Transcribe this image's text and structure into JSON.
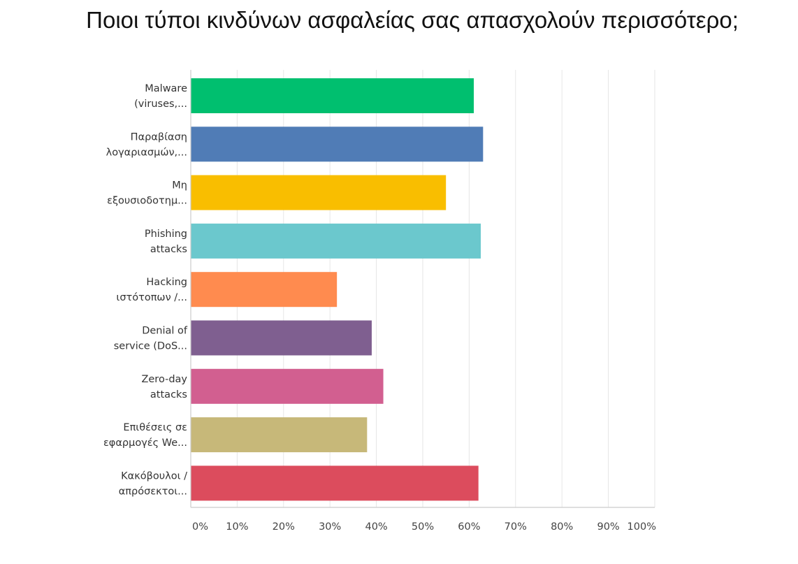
{
  "chart_data": {
    "type": "bar",
    "orientation": "horizontal",
    "title": "Ποιοι τύποι κινδύνων ασφαλείας σας απασχολούν περισσότερο;",
    "categories": [
      [
        "Malware",
        "(viruses,..."
      ],
      [
        "Παραβίαση",
        "λογαριασμών,..."
      ],
      [
        "Μη",
        "εξουσιοδοτημ..."
      ],
      [
        "Phishing",
        "attacks"
      ],
      [
        "Hacking",
        "ιστότοπων /..."
      ],
      [
        "Denial of",
        "service (DoS..."
      ],
      [
        "Zero-day",
        "attacks"
      ],
      [
        "Επιθέσεις σε",
        "εφαρμογές We..."
      ],
      [
        "Κακόβουλοι /",
        "απρόσεκτοι..."
      ]
    ],
    "values": [
      61.0,
      63.0,
      55.0,
      62.5,
      31.5,
      39.0,
      41.5,
      38.0,
      62.0
    ],
    "colors": [
      "#00bf6f",
      "#507cb6",
      "#f9be00",
      "#6bc8cd",
      "#ff8b4f",
      "#7f5f90",
      "#d25f90",
      "#c7b879",
      "#dc4c5d"
    ],
    "xlim": [
      0,
      100
    ],
    "x_ticks": [
      "0%",
      "10%",
      "20%",
      "30%",
      "40%",
      "50%",
      "60%",
      "70%",
      "80%",
      "90%",
      "100%"
    ],
    "grid": true,
    "legend": "none",
    "xlabel": "",
    "ylabel": ""
  }
}
